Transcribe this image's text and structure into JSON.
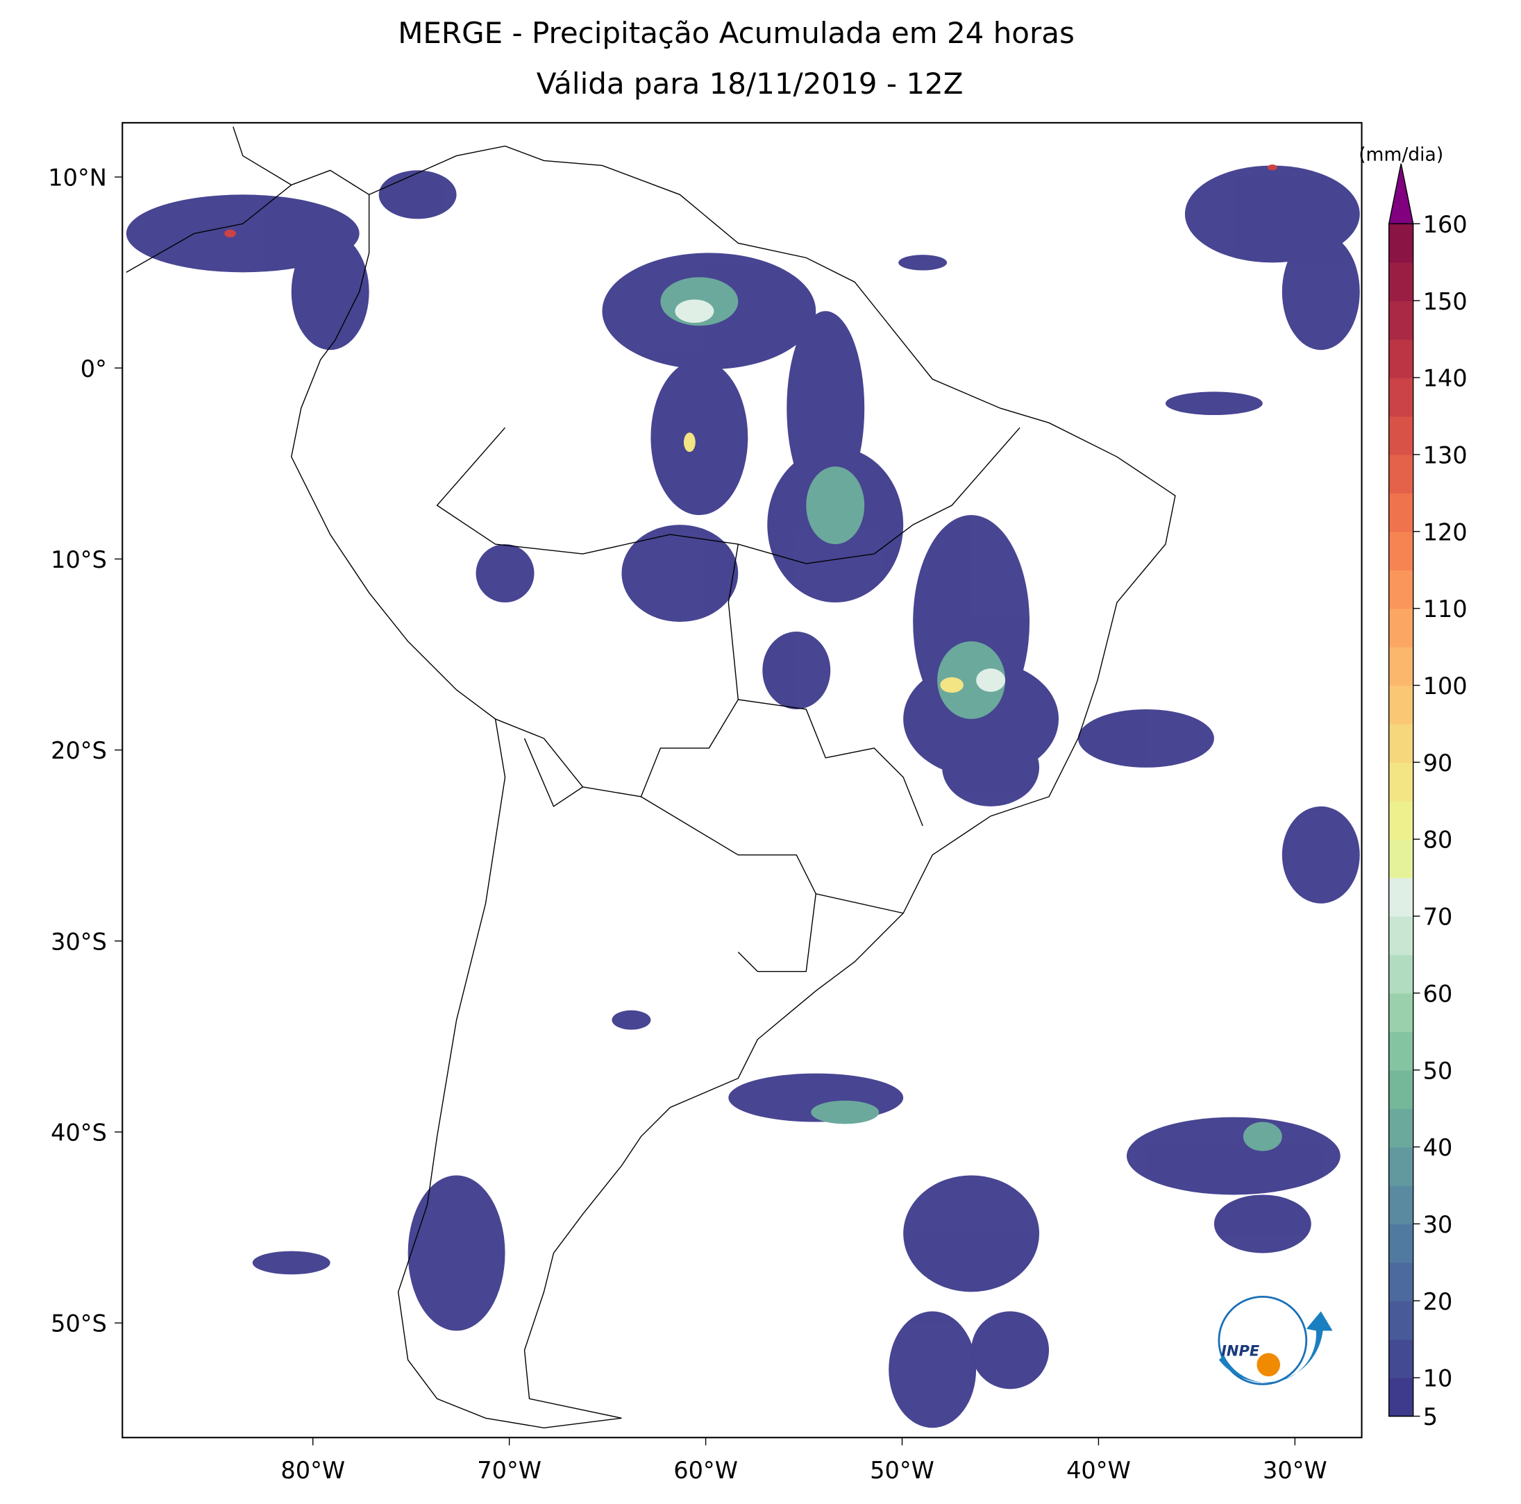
{
  "title": [
    "MERGE - Precipitação Acumulada em 24 horas",
    "Válida para 18/11/2019 - 12Z"
  ],
  "map": {
    "xlim": [
      -89.7,
      -26.6
    ],
    "ylim": [
      -56.0,
      12.84
    ],
    "xticks": [
      {
        "value": -80,
        "label": "80°W"
      },
      {
        "value": -70,
        "label": "70°W"
      },
      {
        "value": -60,
        "label": "60°W"
      },
      {
        "value": -50,
        "label": "50°W"
      },
      {
        "value": -40,
        "label": "40°W"
      },
      {
        "value": -30,
        "label": "30°W"
      }
    ],
    "yticks": [
      {
        "value": 10,
        "label": "10°N"
      },
      {
        "value": 0,
        "label": "0°"
      },
      {
        "value": -10,
        "label": "10°S"
      },
      {
        "value": -20,
        "label": "20°S"
      },
      {
        "value": -30,
        "label": "30°S"
      },
      {
        "value": -40,
        "label": "40°S"
      },
      {
        "value": -50,
        "label": "50°S"
      }
    ]
  },
  "colorbar": {
    "unit": "(mm/dia)",
    "lim": [
      5,
      160
    ],
    "extend_color": "#800080",
    "ticks": [
      5,
      10,
      20,
      30,
      40,
      50,
      60,
      70,
      80,
      90,
      100,
      110,
      120,
      130,
      140,
      150,
      160
    ],
    "colors": [
      "#3e3b8c",
      "#434a92",
      "#485a98",
      "#4c6a9d",
      "#517aa0",
      "#5a8aa0",
      "#62999f",
      "#6ba99c",
      "#74b899",
      "#85c4a0",
      "#9bd0ad",
      "#b2dcbf",
      "#c9e6d3",
      "#dfefe6",
      "#e6f29a",
      "#eef08e",
      "#f3e484",
      "#f7d77c",
      "#fac875",
      "#fbb86c",
      "#fba763",
      "#fa965b",
      "#f68453",
      "#ef734d",
      "#e5624a",
      "#d95248",
      "#cb4346",
      "#bb3545",
      "#aa2944",
      "#9a1e44",
      "#8a1444"
    ]
  },
  "logo": {
    "text": "INPE"
  }
}
